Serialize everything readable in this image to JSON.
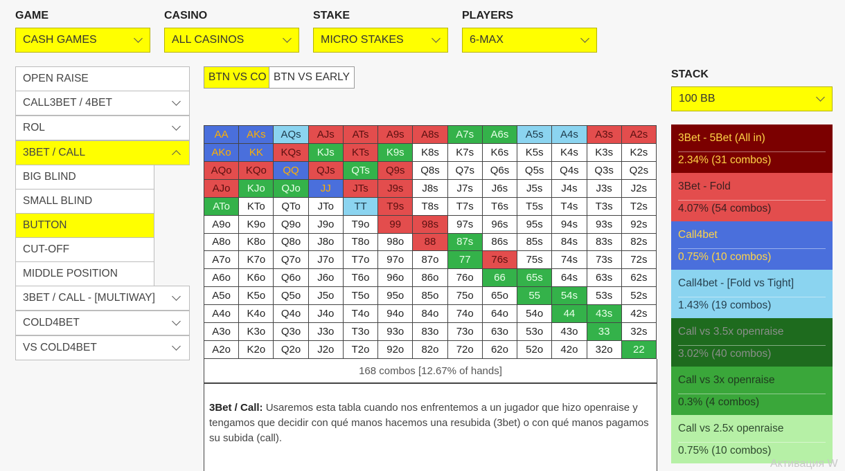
{
  "filters": [
    {
      "label": "GAME",
      "value": "CASH GAMES"
    },
    {
      "label": "CASINO",
      "value": "ALL CASINOS"
    },
    {
      "label": "STAKE",
      "value": "MICRO STAKES"
    },
    {
      "label": "PLAYERS",
      "value": "6-MAX"
    }
  ],
  "stack": {
    "label": "STACK",
    "value": "100 BB"
  },
  "menu": [
    {
      "label": "OPEN RAISE",
      "expandable": false
    },
    {
      "label": "CALL3BET / 4BET",
      "expandable": true
    },
    {
      "label": "ROL",
      "expandable": true
    },
    {
      "label": "3BET / CALL",
      "expandable": true,
      "open": true
    },
    {
      "label": "3BET / CALL - [MULTIWAY]",
      "expandable": true
    },
    {
      "label": "COLD4BET",
      "expandable": true
    },
    {
      "label": "VS COLD4BET",
      "expandable": true
    }
  ],
  "submenu": [
    "BIG BLIND",
    "SMALL BLIND",
    "BUTTON",
    "CUT-OFF",
    "MIDDLE POSITION"
  ],
  "submenu_active": 2,
  "tabs": [
    "BTN VS CO",
    "BTN VS EARLY"
  ],
  "tab_active": 0,
  "colors": {
    "A": "#7b0000",
    "B": "#e34d4d",
    "C": "#4a6fdc",
    "D": "#8bd4f0",
    "E": "#1e6b1e",
    "F": "#34b24a",
    "G": "#b6f0a6",
    "H": "#f2d28a"
  },
  "ranges": {
    "AA": "C",
    "AKs": "C",
    "AQs": "D",
    "AJs": "B",
    "ATs": "B",
    "A9s": "B",
    "A8s": "B",
    "A7s": "F",
    "A6s": "F",
    "A5s": "D",
    "A4s": "D",
    "A3s": "B",
    "A2s": "B",
    "AKo": "C",
    "KK": "C",
    "KQs": "B",
    "KJs": "F",
    "KTs": "B",
    "K9s": "F",
    "AQo": "B",
    "KQo": "B",
    "QQ": "C",
    "QJs": "B",
    "QTs": "F",
    "Q9s": "B",
    "AJo": "B",
    "KJo": "F",
    "QJo": "F",
    "JJ": "C",
    "JTs": "B",
    "J9s": "B",
    "ATo": "F",
    "TT": "D",
    "T9s": "B",
    "99": "B",
    "98s": "B",
    "88": "B",
    "87s": "F",
    "77": "F",
    "76s": "B",
    "66": "F",
    "65s": "F",
    "55": "F",
    "54s": "F",
    "44": "F",
    "43s": "F",
    "33": "F",
    "22": "F"
  },
  "summary": "168 combos [12.67% of hands]",
  "description": {
    "bold": "3Bet / Call:",
    "text": " Usaremos esta tabla cuando nos enfrentemos a un jugador que hizo openraise y tengamos que decidir con qué manos hacemos una resubida (3bet) o con qué manos pagamos su subida (call)."
  },
  "legend": [
    {
      "title": "3Bet - 5Bet (All in)",
      "value": "2.34% (31 combos)",
      "bg": "#7b0000",
      "fg": "#ffd447"
    },
    {
      "title": "3Bet - Fold",
      "value": "4.07% (54 combos)",
      "bg": "#e34d4d",
      "fg": "#3a1f1f"
    },
    {
      "title": "Call4bet",
      "value": "0.75% (10 combos)",
      "bg": "#4a6fdc",
      "fg": "#ffd447"
    },
    {
      "title": "Call4bet - [Fold vs Tight]",
      "value": "1.43% (19 combos)",
      "bg": "#8bd4f0",
      "fg": "#26404f"
    },
    {
      "title": "Call vs 3.5x openraise",
      "value": "3.02% (40 combos)",
      "bg": "#1e6b1e",
      "fg": "#8a8f8a"
    },
    {
      "title": "Call vs 3x openraise",
      "value": "0.3% (4 combos)",
      "bg": "#3aa73a",
      "fg": "#1f3a1f"
    },
    {
      "title": "Call vs 2.5x openraise",
      "value": "0.75% (10 combos)",
      "bg": "#b6f0a6",
      "fg": "#2f4a2f"
    }
  ],
  "watermark": "Активация W"
}
